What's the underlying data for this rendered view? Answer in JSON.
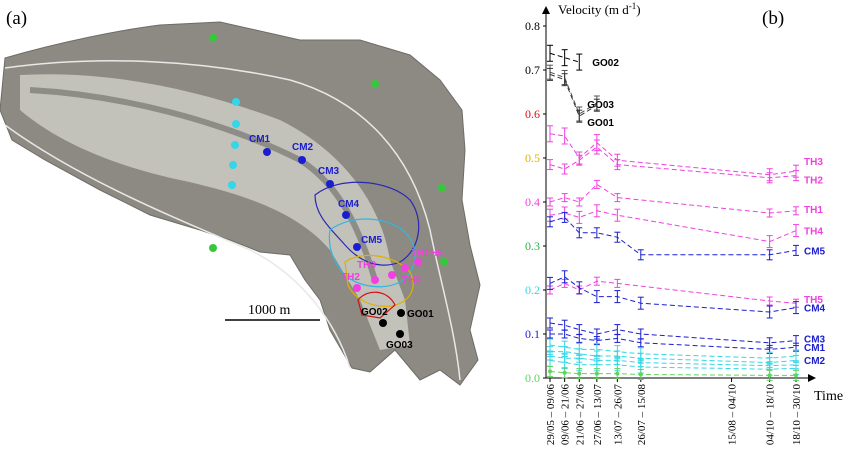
{
  "panels": {
    "a": "(a)",
    "b": "(b)"
  },
  "map": {
    "scale_label": "1000 m",
    "points": {
      "green": [
        "",
        "",
        "",
        "",
        ""
      ],
      "cyan": [
        "",
        "",
        "",
        "",
        ""
      ],
      "cm": [
        "CM1",
        "CM2",
        "CM3",
        "CM4",
        "CM5"
      ],
      "th": [
        "TH1",
        "TH2",
        "TH3",
        "TH4",
        "TH5"
      ],
      "go": [
        "GO01",
        "GO02",
        "GO03"
      ]
    },
    "colors": {
      "green": "#35c93a",
      "cyan": "#35d6e6",
      "cm": "#1a1ed0",
      "th": "#f040e0",
      "go": "#000000",
      "contour_blue": "#2a2ab0",
      "contour_cyan": "#30b8e0",
      "contour_yellow": "#e0b000",
      "contour_red": "#d01010"
    }
  },
  "chart_data": {
    "type": "line",
    "ylabel": "Velocity (m d",
    "ylabel_sup": "-1",
    "ylabel_end": ")",
    "xlabel": "Time",
    "ylim": [
      0,
      0.8
    ],
    "yticks": [
      "0.0",
      "0.1",
      "0.2",
      "0.3",
      "0.4",
      "0.5",
      "0.6",
      "0.7",
      "0.8"
    ],
    "ytick_colors": [
      "#5fd35f",
      "#1a1ed0",
      "#35d6e6",
      "#2db34a",
      "#f040e0",
      "#e0b000",
      "#e01010",
      "#000000",
      "#000000"
    ],
    "categories": [
      "29/05 – 09/06",
      "09/06 – 21/06",
      "21/06 – 27/06",
      "27/06 – 13/07",
      "13/07 – 26/07",
      "26/07 – 15/08",
      "15/08 – 04/10",
      "04/10 – 18/10",
      "18/10 – 30/10"
    ],
    "category_pos": [
      0,
      0.5,
      1,
      1.6,
      2.3,
      3.1,
      6.2,
      7.5,
      8.4
    ],
    "series": [
      {
        "name": "GO02",
        "color": "#000000",
        "values": [
          0.738,
          0.728,
          0.718,
          null,
          null,
          null,
          null,
          null,
          null
        ]
      },
      {
        "name": "GO03",
        "color": "#555555",
        "values": [
          0.695,
          0.683,
          0.6,
          0.625,
          null,
          null,
          null,
          null,
          null
        ]
      },
      {
        "name": "GO01",
        "color": "#333333",
        "values": [
          0.69,
          0.678,
          0.595,
          0.62,
          null,
          null,
          null,
          null,
          null
        ]
      },
      {
        "name": "TH3",
        "color": "#f040e0",
        "values": [
          0.555,
          0.55,
          0.5,
          0.535,
          0.495,
          null,
          null,
          0.462,
          0.47
        ]
      },
      {
        "name": "TH2",
        "color": "#f040e0",
        "values": [
          0.485,
          0.475,
          0.495,
          0.525,
          0.485,
          null,
          null,
          0.455,
          0.46
        ]
      },
      {
        "name": "TH1",
        "color": "#f040e0",
        "values": [
          0.4,
          0.41,
          0.4,
          0.44,
          0.41,
          null,
          null,
          0.375,
          0.38
        ]
      },
      {
        "name": "TH4",
        "color": "#f040e0",
        "values": [
          0.37,
          0.375,
          0.365,
          0.38,
          0.37,
          null,
          null,
          0.31,
          0.335
        ]
      },
      {
        "name": "CM5",
        "color": "#1a1ed0",
        "values": [
          0.355,
          0.365,
          0.33,
          0.33,
          0.32,
          0.28,
          null,
          0.28,
          0.29
        ]
      },
      {
        "name": "TH5",
        "color": "#f040e0",
        "values": [
          0.2,
          0.215,
          0.2,
          0.22,
          0.215,
          null,
          null,
          0.175,
          0.17
        ]
      },
      {
        "name": "CM4",
        "color": "#1a1ed0",
        "values": [
          0.215,
          0.23,
          0.205,
          0.185,
          0.185,
          0.17,
          null,
          0.15,
          0.16
        ]
      },
      {
        "name": "CM3",
        "color": "#1a1ed0",
        "values": [
          0.125,
          0.12,
          0.11,
          0.1,
          0.11,
          0.1,
          null,
          0.08,
          0.085
        ]
      },
      {
        "name": "CM1",
        "color": "#1a1ed0",
        "values": [
          0.1,
          0.1,
          0.09,
          0.085,
          0.09,
          0.08,
          null,
          0.065,
          0.07
        ]
      },
      {
        "name": "CM2",
        "color": "#35d6e6",
        "values": [
          0.075,
          0.07,
          0.065,
          0.065,
          0.06,
          0.055,
          null,
          0.045,
          0.05
        ]
      },
      {
        "name": "",
        "color": "#35d6e6",
        "values": [
          0.06,
          0.06,
          0.055,
          0.05,
          0.05,
          0.045,
          null,
          0.035,
          0.04
        ]
      },
      {
        "name": "",
        "color": "#35d6e6",
        "values": [
          0.05,
          0.045,
          0.045,
          0.04,
          0.04,
          0.035,
          null,
          0.028,
          0.03
        ]
      },
      {
        "name": "",
        "color": "#35d6e6",
        "values": [
          0.04,
          0.035,
          0.03,
          0.03,
          0.03,
          0.025,
          null,
          0.02,
          0.022
        ]
      },
      {
        "name": "",
        "color": "#5fd35f",
        "values": [
          0.015,
          0.012,
          0.01,
          0.01,
          0.01,
          0.008,
          null,
          0.006,
          0.006
        ]
      }
    ],
    "label_colors": {
      "GO02": "#000000",
      "GO03": "#000000",
      "GO01": "#000000",
      "TH3": "#f040e0",
      "TH2": "#f040e0",
      "TH1": "#f040e0",
      "TH4": "#f040e0",
      "CM5": "#1a1ed0",
      "TH5": "#f040e0",
      "CM4": "#1a1ed0",
      "CM3": "#1a1ed0",
      "CM1": "#1a1ed0",
      "CM2": "#1a1ed0"
    }
  }
}
